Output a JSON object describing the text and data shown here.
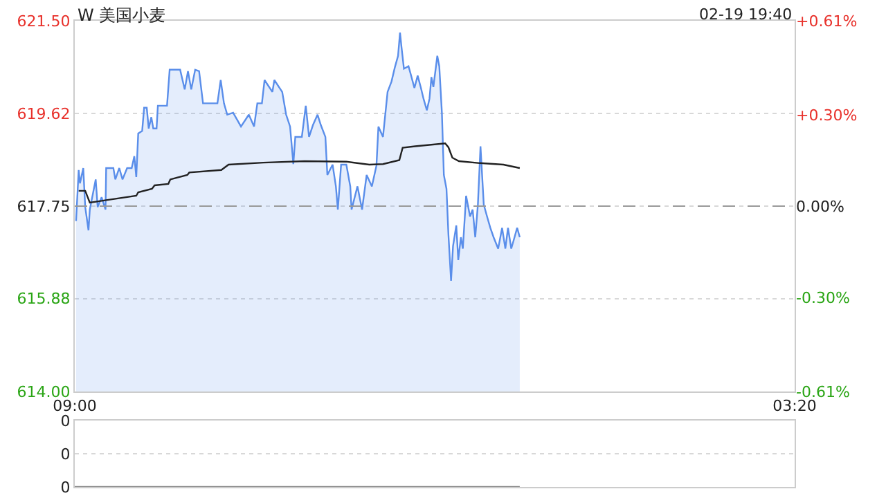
{
  "chart_data": [
    {
      "type": "line",
      "title": "W 美国小麦",
      "subtitle": "02-19 19:40",
      "xlim": [
        "--02-19T09:00",
        "--02-20T03:20"
      ],
      "xticks": [
        {
          "value": "--02-19T09:00",
          "label": "09:00"
        },
        {
          "value": "--02-20T03:20",
          "label": "03:20"
        }
      ],
      "ylim": [
        614.0,
        621.5
      ],
      "yticks": [
        {
          "value": 614.0,
          "label": "614.00"
        },
        {
          "value": 615.88,
          "label": "615.88"
        },
        {
          "value": 617.75,
          "label": "617.75"
        },
        {
          "value": 619.62,
          "label": "619.62"
        },
        {
          "value": 621.5,
          "label": "621.50"
        }
      ],
      "y2lim": [
        -0.61,
        0.61
      ],
      "y2ticks": [
        {
          "value": -0.61,
          "label": "-0.61%"
        },
        {
          "value": -0.3,
          "label": "-0.30%"
        },
        {
          "value": 0,
          "label": "0.00%"
        },
        {
          "value": 0.3,
          "label": "+0.30%"
        },
        {
          "value": 0.61,
          "label": "+0.61%"
        }
      ],
      "grid": "y",
      "marker": "none",
      "ref_lines": [
        {
          "axis": "y",
          "value": 617.75,
          "line_style": "dashed",
          "color": "#999999"
        }
      ],
      "series": [
        {
          "type": "area",
          "color": "#5a8eea",
          "x": [
            "--02-19T09:02",
            "--02-19T09:06",
            "--02-19T09:08",
            "--02-19T09:13",
            "--02-19T09:16",
            "--02-19T09:21",
            "--02-19T09:23",
            "--02-19T09:32",
            "--02-19T09:35",
            "--02-19T09:41",
            "--02-19T09:47",
            "--02-19T09:48",
            "--02-19T09:59",
            "--02-19T10:02",
            "--02-19T10:08",
            "--02-19T10:13",
            "--02-19T10:20",
            "--02-19T10:27",
            "--02-19T10:31",
            "--02-19T10:34",
            "--02-19T10:37",
            "--02-19T10:43",
            "--02-19T10:46",
            "--02-19T10:50",
            "--02-19T10:53",
            "--02-19T10:57",
            "--02-19T11:00",
            "--02-19T11:05",
            "--02-19T11:07",
            "--02-19T11:21",
            "--02-19T11:25",
            "--02-19T11:41",
            "--02-19T11:48",
            "--02-19T11:53",
            "--02-19T11:58",
            "--02-19T12:04",
            "--02-19T12:10",
            "--02-19T12:16",
            "--02-19T12:38",
            "--02-19T12:43",
            "--02-19T12:48",
            "--02-19T12:53",
            "--02-19T13:02",
            "--02-19T13:14",
            "--02-19T13:26",
            "--02-19T13:34",
            "--02-19T13:39",
            "--02-19T13:46",
            "--02-19T13:50",
            "--02-19T14:02",
            "--02-19T14:05",
            "--02-19T14:17",
            "--02-19T14:23",
            "--02-19T14:29",
            "--02-19T14:34",
            "--02-19T14:37",
            "--02-19T14:47",
            "--02-19T14:53",
            "--02-19T14:58",
            "--02-19T15:04",
            "--02-19T15:11",
            "--02-19T15:16",
            "--02-19T15:23",
            "--02-19T15:26",
            "--02-19T15:34",
            "--02-19T15:39",
            "--02-19T15:42",
            "--02-19T15:47",
            "--02-19T15:55",
            "--02-19T16:01",
            "--02-19T16:03",
            "--02-19T16:12",
            "--02-19T16:19",
            "--02-19T16:26",
            "--02-19T16:34",
            "--02-19T16:41",
            "--02-19T16:44",
            "--02-19T16:51",
            "--02-19T16:58",
            "--02-19T17:04",
            "--02-19T17:09",
            "--02-19T17:14",
            "--02-19T17:17",
            "--02-19T17:19",
            "--02-19T17:23",
            "--02-19T17:30",
            "--02-19T17:34",
            "--02-19T17:39",
            "--02-19T17:44",
            "--02-19T17:49",
            "--02-19T17:53",
            "--02-19T17:58",
            "--02-19T18:02",
            "--02-19T18:05",
            "--02-19T18:08",
            "--02-19T18:14",
            "--02-19T18:17",
            "--02-19T18:21",
            "--02-19T18:24",
            "--02-19T18:28",
            "--02-19T18:31",
            "--02-19T18:35",
            "--02-19T18:38",
            "--02-19T18:43",
            "--02-19T18:46",
            "--02-19T18:50",
            "--02-19T18:53",
            "--02-19T18:58",
            "--02-19T19:04",
            "--02-19T19:08",
            "--02-19T19:12",
            "--02-19T19:16",
            "--02-19T19:20",
            "--02-19T19:25",
            "--02-19T19:30",
            "--02-19T19:35",
            "--02-19T19:40",
            "--02-19T19:47",
            "--02-19T19:53",
            "--02-19T19:58",
            "--02-19T20:02",
            "--02-19T20:07",
            "--02-19T20:12",
            "--02-19T20:16",
            "--02-19T20:20"
          ],
          "values": [
            617.45,
            618.48,
            618.21,
            618.52,
            617.73,
            617.26,
            617.68,
            618.29,
            617.73,
            617.93,
            617.68,
            618.52,
            618.52,
            618.29,
            618.52,
            618.29,
            618.52,
            618.52,
            618.76,
            618.34,
            619.22,
            619.27,
            619.74,
            619.74,
            619.32,
            619.55,
            619.32,
            619.32,
            619.78,
            619.78,
            620.51,
            620.51,
            620.11,
            620.48,
            620.11,
            620.51,
            620.48,
            619.83,
            619.83,
            620.3,
            619.83,
            619.6,
            619.64,
            619.36,
            619.6,
            619.36,
            619.83,
            619.83,
            620.3,
            620.06,
            620.3,
            620.06,
            619.6,
            619.36,
            618.6,
            619.15,
            619.15,
            619.78,
            619.15,
            619.39,
            619.6,
            619.39,
            619.15,
            618.38,
            618.59,
            618.15,
            617.68,
            618.59,
            618.59,
            618.15,
            617.68,
            618.15,
            617.68,
            618.38,
            618.15,
            618.57,
            619.36,
            619.15,
            620.06,
            620.27,
            620.55,
            620.79,
            621.26,
            621.0,
            620.53,
            620.58,
            620.39,
            620.14,
            620.39,
            620.14,
            619.92,
            619.69,
            619.92,
            620.36,
            620.16,
            620.79,
            620.58,
            619.64,
            618.38,
            618.1,
            617.17,
            616.24,
            616.94,
            617.36,
            616.66,
            617.12,
            616.89,
            617.96,
            617.54,
            617.68,
            617.12,
            617.78,
            618.96,
            617.78,
            617.54,
            617.31,
            617.12,
            616.89,
            617.31,
            616.89,
            617.31,
            616.89,
            617.12,
            617.31,
            617.12
          ]
        },
        {
          "type": "line",
          "color": "#222222",
          "x": [
            "--02-19T09:06",
            "--02-19T09:16",
            "--02-19T09:23",
            "--02-19T09:48",
            "--02-19T10:34",
            "--02-19T10:37",
            "--02-19T10:58",
            "--02-19T11:02",
            "--02-19T11:23",
            "--02-19T11:26",
            "--02-19T11:52",
            "--02-19T11:55",
            "--02-19T12:44",
            "--02-19T12:55",
            "--02-19T13:48",
            "--02-19T14:51",
            "--02-19T15:55",
            "--02-19T16:30",
            "--02-19T16:51",
            "--02-19T17:16",
            "--02-19T17:21",
            "--02-19T17:40",
            "--02-19T18:26",
            "--02-19T18:31",
            "--02-19T18:37",
            "--02-19T18:47",
            "--02-19T19:19",
            "--02-19T19:55",
            "--02-19T20:20"
          ],
          "values": [
            618.06,
            618.06,
            617.82,
            617.87,
            617.96,
            618.03,
            618.1,
            618.17,
            618.2,
            618.29,
            618.38,
            618.43,
            618.48,
            618.59,
            618.63,
            618.66,
            618.65,
            618.59,
            618.6,
            618.68,
            618.93,
            618.96,
            619.02,
            618.94,
            618.73,
            618.66,
            618.62,
            618.59,
            618.52
          ]
        }
      ]
    },
    {
      "type": "line",
      "xlim": [
        "--02-19T09:00",
        "--02-20T03:20"
      ],
      "ylim": [
        0,
        0.4
      ],
      "yticks": [
        {
          "value": 0,
          "label": "0"
        },
        {
          "value": 0.2,
          "label": "0"
        },
        {
          "value": 0.4,
          "label": "0"
        }
      ],
      "tick_labels": "y",
      "grid": "y",
      "marker": "none",
      "series": [
        {
          "color": "#888888",
          "x": [
            "--02-19T09:00",
            "--02-19T20:20"
          ],
          "values": [
            0,
            0
          ]
        }
      ]
    }
  ]
}
